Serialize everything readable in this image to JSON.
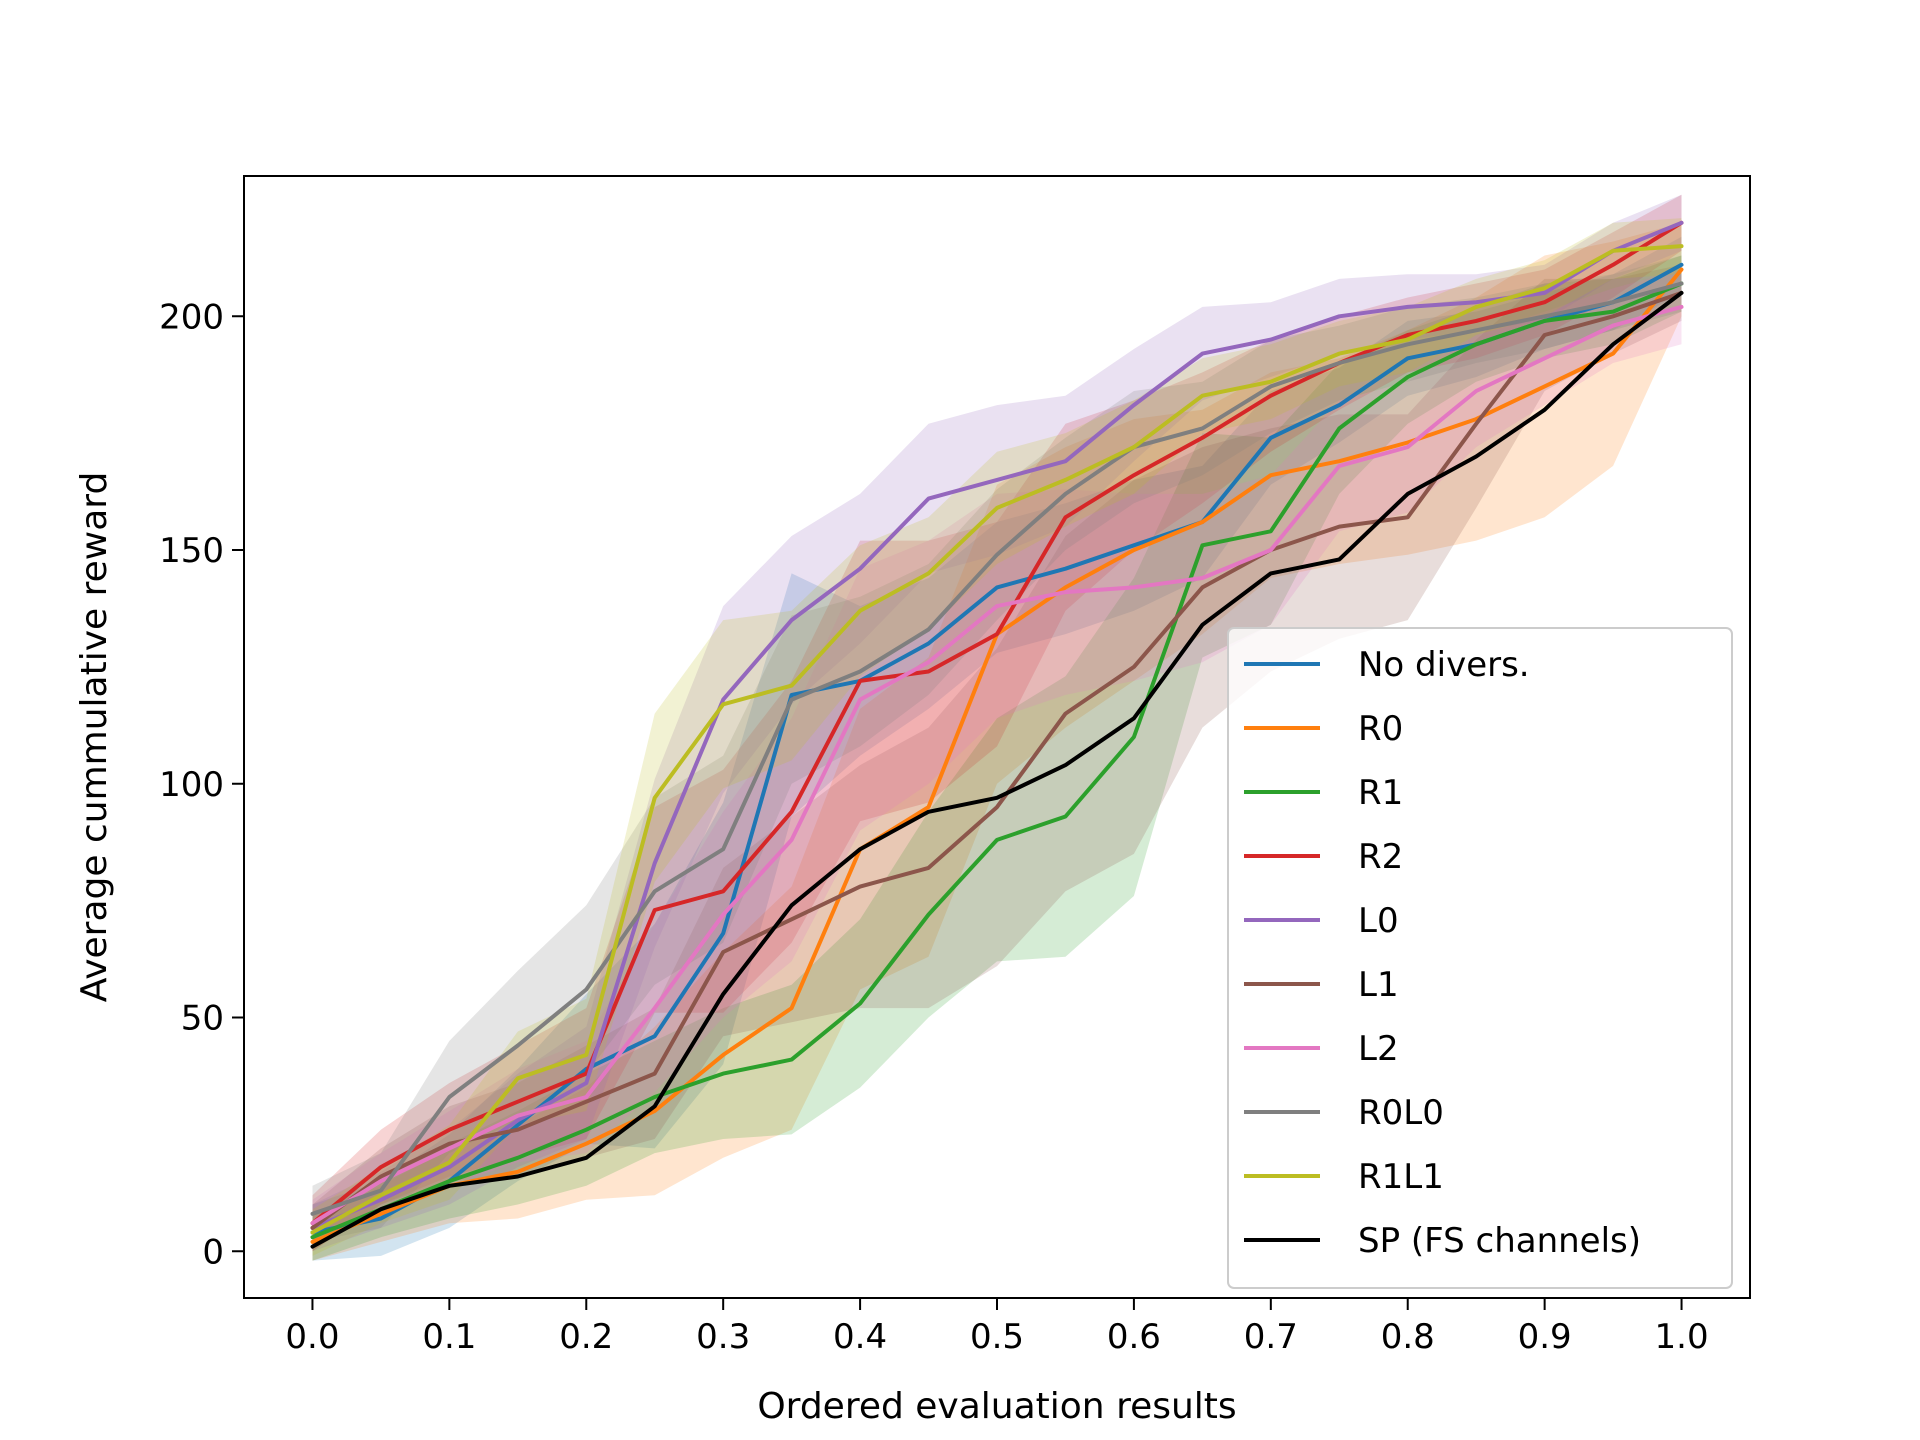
{
  "chart_data": {
    "type": "line",
    "title": "",
    "xlabel": "Ordered evaluation results",
    "ylabel": "Average cummulative reward",
    "xlim": [
      -0.05,
      1.05
    ],
    "ylim": [
      -10,
      230
    ],
    "xticks": [
      0.0,
      0.1,
      0.2,
      0.3,
      0.4,
      0.5,
      0.6,
      0.7,
      0.8,
      0.9,
      1.0
    ],
    "xtick_labels": [
      "0.0",
      "0.1",
      "0.2",
      "0.3",
      "0.4",
      "0.5",
      "0.6",
      "0.7",
      "0.8",
      "0.9",
      "1.0"
    ],
    "yticks": [
      0,
      50,
      100,
      150,
      200
    ],
    "ytick_labels": [
      "0",
      "50",
      "100",
      "150",
      "200"
    ],
    "grid": false,
    "legend_position": "lower-right",
    "shaded_band": "variability range around each series",
    "x": [
      0.0,
      0.05,
      0.1,
      0.15,
      0.2,
      0.25,
      0.3,
      0.35,
      0.4,
      0.45,
      0.5,
      0.55,
      0.6,
      0.65,
      0.7,
      0.75,
      0.8,
      0.85,
      0.9,
      0.95,
      1.0
    ],
    "series": [
      {
        "name": "No divers.",
        "color": "#1f77b4",
        "values": [
          4,
          7,
          15,
          27,
          39,
          46,
          68,
          119,
          122,
          130,
          142,
          146,
          151,
          156,
          174,
          181,
          191,
          194,
          199,
          203,
          211
        ],
        "band": [
          6,
          8,
          10,
          12,
          16,
          24,
          28,
          26,
          16,
          14,
          14,
          14,
          14,
          12,
          10,
          8,
          8,
          7,
          6,
          6,
          6
        ]
      },
      {
        "name": "R0",
        "color": "#ff7f0e",
        "values": [
          2,
          8,
          14,
          17,
          23,
          30,
          42,
          52,
          86,
          95,
          132,
          142,
          150,
          156,
          166,
          169,
          173,
          178,
          185,
          192,
          210
        ],
        "band": [
          4,
          6,
          8,
          10,
          12,
          18,
          22,
          26,
          30,
          32,
          32,
          30,
          28,
          24,
          22,
          22,
          24,
          26,
          28,
          24,
          10
        ]
      },
      {
        "name": "R1",
        "color": "#2ca02c",
        "values": [
          3,
          9,
          15,
          20,
          26,
          33,
          38,
          41,
          53,
          72,
          88,
          93,
          110,
          151,
          154,
          176,
          187,
          194,
          199,
          201,
          207
        ],
        "band": [
          5,
          6,
          8,
          10,
          12,
          12,
          14,
          16,
          18,
          22,
          26,
          30,
          34,
          24,
          20,
          14,
          10,
          8,
          8,
          7,
          6
        ]
      },
      {
        "name": "R2",
        "color": "#d62728",
        "values": [
          6,
          18,
          26,
          32,
          38,
          73,
          77,
          94,
          122,
          124,
          132,
          157,
          166,
          174,
          183,
          190,
          196,
          199,
          203,
          211,
          220
        ],
        "band": [
          6,
          8,
          10,
          12,
          14,
          22,
          26,
          28,
          30,
          28,
          24,
          20,
          16,
          14,
          12,
          10,
          8,
          8,
          7,
          7,
          6
        ]
      },
      {
        "name": "L0",
        "color": "#9467bd",
        "values": [
          5,
          11,
          18,
          28,
          36,
          83,
          118,
          135,
          146,
          161,
          165,
          169,
          181,
          192,
          195,
          200,
          202,
          203,
          205,
          214,
          220
        ],
        "band": [
          5,
          6,
          8,
          10,
          12,
          18,
          20,
          18,
          16,
          16,
          16,
          14,
          12,
          10,
          8,
          8,
          7,
          6,
          6,
          6,
          6
        ]
      },
      {
        "name": "L1",
        "color": "#8c564b",
        "values": [
          5,
          16,
          23,
          26,
          32,
          38,
          64,
          71,
          78,
          82,
          95,
          115,
          125,
          142,
          150,
          155,
          157,
          177,
          196,
          200,
          205
        ],
        "band": [
          5,
          6,
          8,
          10,
          12,
          14,
          18,
          22,
          26,
          30,
          34,
          38,
          40,
          30,
          26,
          24,
          22,
          18,
          12,
          8,
          6
        ]
      },
      {
        "name": "L2",
        "color": "#e377c2",
        "values": [
          6,
          15,
          22,
          29,
          33,
          52,
          72,
          88,
          118,
          126,
          138,
          141,
          142,
          144,
          150,
          168,
          172,
          184,
          191,
          198,
          202
        ],
        "band": [
          5,
          6,
          8,
          10,
          12,
          18,
          22,
          26,
          28,
          26,
          24,
          22,
          20,
          18,
          16,
          14,
          14,
          12,
          10,
          8,
          8
        ]
      },
      {
        "name": "R0L0",
        "color": "#7f7f7f",
        "values": [
          8,
          13,
          33,
          44,
          56,
          77,
          86,
          118,
          124,
          133,
          149,
          162,
          172,
          176,
          185,
          190,
          194,
          197,
          200,
          203,
          207
        ],
        "band": [
          6,
          8,
          12,
          16,
          18,
          20,
          20,
          18,
          16,
          14,
          14,
          12,
          12,
          10,
          10,
          8,
          8,
          7,
          7,
          6,
          6
        ]
      },
      {
        "name": "R1L1",
        "color": "#bcbd22",
        "values": [
          4,
          12,
          19,
          37,
          42,
          97,
          117,
          121,
          137,
          145,
          159,
          165,
          172,
          183,
          186,
          192,
          195,
          202,
          206,
          214,
          215
        ],
        "band": [
          5,
          6,
          8,
          10,
          12,
          18,
          18,
          16,
          14,
          12,
          12,
          10,
          10,
          8,
          8,
          7,
          7,
          6,
          6,
          6,
          6
        ]
      },
      {
        "name": "SP (FS channels)",
        "color": "#000000",
        "values": [
          1,
          9,
          14,
          16,
          20,
          31,
          55,
          74,
          86,
          94,
          97,
          104,
          114,
          134,
          145,
          148,
          162,
          170,
          180,
          194,
          205
        ],
        "band": null
      }
    ]
  }
}
